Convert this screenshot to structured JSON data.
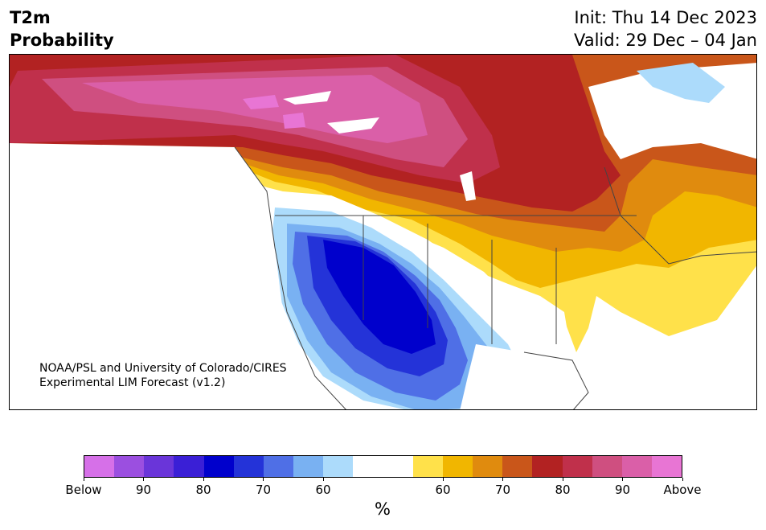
{
  "title": {
    "line1": "T2m",
    "line2": "Probability"
  },
  "init": "Init: Thu 14 Dec 2023",
  "valid": "Valid: 29 Dec – 04 Jan",
  "credit": {
    "line1": "NOAA/PSL and University of Colorado/CIRES",
    "line2": "Experimental LIM Forecast (v1.2)"
  },
  "colorbar": {
    "colors": [
      "#d670e8",
      "#9b4fe0",
      "#6a35d9",
      "#3a1fd6",
      "#0000cc",
      "#2433d8",
      "#4f6fe6",
      "#79b1f2",
      "#acdbfb",
      "#ffffff",
      "#ffffff",
      "#ffe14a",
      "#f1b600",
      "#e08b0e",
      "#c9561a",
      "#b22222",
      "#c0304b",
      "#cf4f80",
      "#da5fa8",
      "#e875d4"
    ],
    "tick_labels": [
      "Below",
      "90",
      "80",
      "70",
      "60",
      "60",
      "70",
      "80",
      "90",
      "Above"
    ],
    "unit_label": "%"
  },
  "map": {
    "region": "North America",
    "below_colors": {
      "b60": "#acdbfb",
      "b70": "#79b1f2",
      "b80": "#4f6fe6",
      "b85": "#2433d8",
      "b90": "#0000cc"
    },
    "above_colors": {
      "a60": "#ffe14a",
      "a65": "#f1b600",
      "a70": "#e08b0e",
      "a75": "#c9561a",
      "a80": "#b22222",
      "a85": "#c0304b",
      "a90": "#cf4f80",
      "a95": "#da5fa8",
      "max": "#e875d4",
      "ice": "#acdbfb"
    }
  }
}
